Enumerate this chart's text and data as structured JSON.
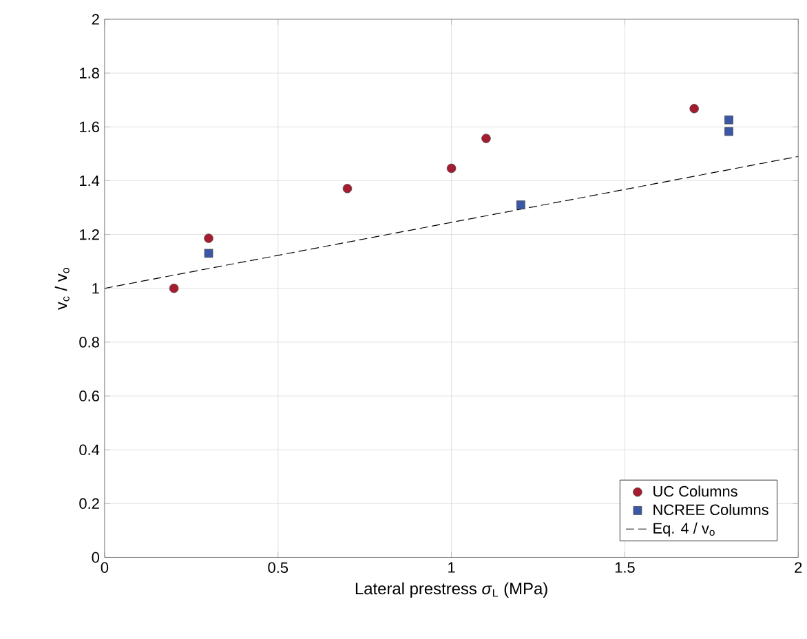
{
  "chart_data": {
    "type": "scatter",
    "xlabel": "Lateral prestress *σ*$_{L}$ (MPa)",
    "ylabel": "v$_{c}$ / v$_{o}$",
    "xlim": [
      0,
      2
    ],
    "ylim": [
      0,
      2
    ],
    "xticks": [
      0,
      0.5,
      1,
      1.5,
      2
    ],
    "yticks": [
      0,
      0.2,
      0.4,
      0.6,
      0.8,
      1,
      1.2,
      1.4,
      1.6,
      1.8,
      2
    ],
    "grid": true,
    "legend": "bottom right",
    "series": [
      {
        "name": "UC Columns",
        "marker": "circle",
        "color": "#a51c30",
        "x": [
          0.2,
          0.3,
          0.7,
          1.0,
          1.1,
          1.7
        ],
        "values": [
          1.0,
          1.186,
          1.371,
          1.446,
          1.557,
          1.668
        ]
      },
      {
        "name": "NCREE Columns",
        "marker": "square",
        "color": "#3b57a8",
        "x": [
          0.3,
          1.2,
          1.8,
          1.8
        ],
        "values": [
          1.13,
          1.31,
          1.626,
          1.583
        ]
      },
      {
        "name": "Eq. 4 / v$_{o}$",
        "type": "line",
        "line_style": "dashed",
        "marker": "none",
        "color": "#000000",
        "x": [
          0,
          2
        ],
        "values": [
          1.0,
          1.49
        ]
      }
    ]
  }
}
